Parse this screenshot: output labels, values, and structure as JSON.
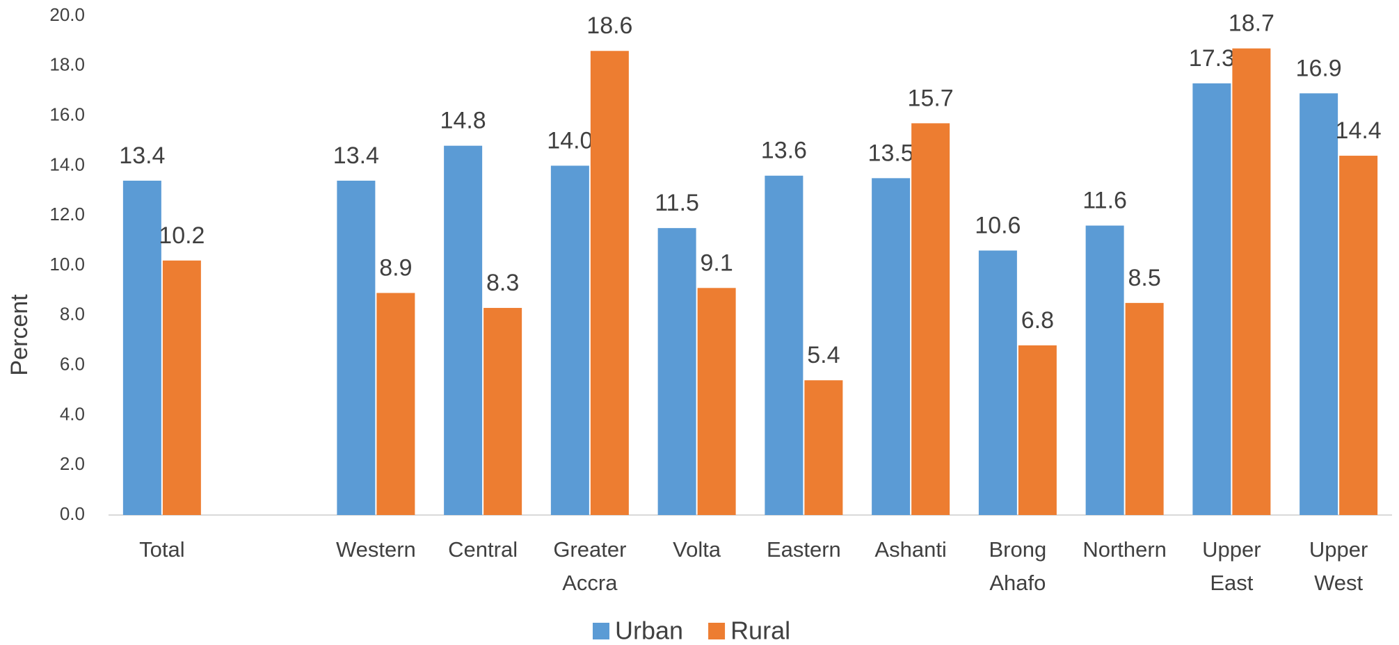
{
  "chart_data": {
    "type": "bar",
    "y_label": "Percent",
    "categories": [
      "Total",
      null,
      "Western",
      "Central",
      "Greater Accra",
      "Volta",
      "Eastern",
      "Ashanti",
      "Brong Ahafo",
      "Northern",
      "Upper East",
      "Upper West"
    ],
    "series": [
      {
        "name": "Urban",
        "color": "#5b9bd5",
        "values": [
          13.4,
          null,
          13.4,
          14.8,
          14.0,
          11.5,
          13.6,
          13.5,
          10.6,
          11.6,
          17.3,
          16.9
        ],
        "value_labels": [
          "13.4",
          null,
          "13.4",
          "14.8",
          "14.0",
          "11.5",
          "13.6",
          "13.5",
          "10.6",
          "11.6",
          "17.3",
          "16.9"
        ]
      },
      {
        "name": "Rural",
        "color": "#ed7d31",
        "values": [
          10.2,
          null,
          8.9,
          8.3,
          18.6,
          9.1,
          5.4,
          15.7,
          6.8,
          8.5,
          18.7,
          14.4
        ],
        "value_labels": [
          "10.2",
          null,
          "8.9",
          "8.3",
          "18.6",
          "9.1",
          "5.4",
          "15.7",
          "6.8",
          "8.5",
          "18.7",
          "14.4"
        ]
      }
    ],
    "ylim": [
      0,
      20
    ],
    "yticks": [
      {
        "value": 0,
        "label": "0.0"
      },
      {
        "value": 2,
        "label": "2.0"
      },
      {
        "value": 4,
        "label": "4.0"
      },
      {
        "value": 6,
        "label": "6.0"
      },
      {
        "value": 8,
        "label": "8.0"
      },
      {
        "value": 10,
        "label": "10.0"
      },
      {
        "value": 12,
        "label": "12.0"
      },
      {
        "value": 14,
        "label": "14.0"
      },
      {
        "value": 16,
        "label": "16.0"
      },
      {
        "value": 18,
        "label": "18.0"
      },
      {
        "value": 20,
        "label": "20.0"
      }
    ],
    "grid": false,
    "legend": "bottom"
  }
}
